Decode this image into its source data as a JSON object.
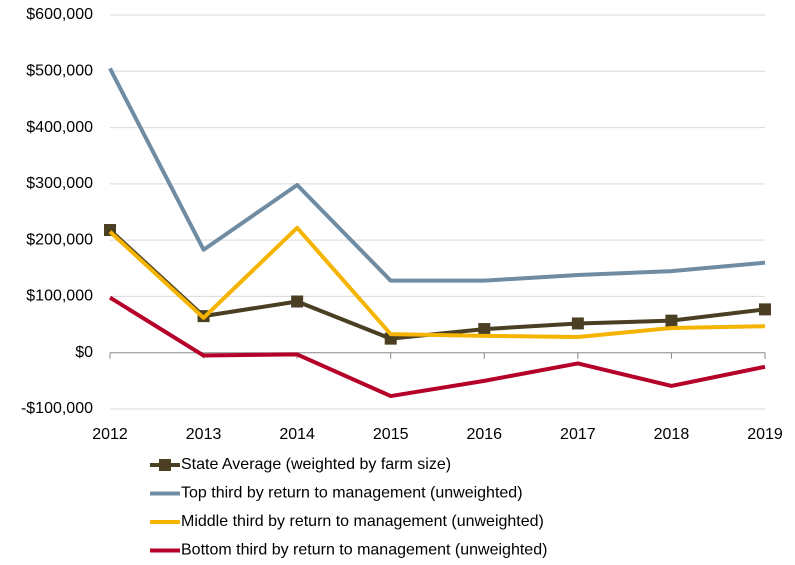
{
  "chart_data": {
    "type": "line",
    "x": [
      2012,
      2013,
      2014,
      2015,
      2016,
      2017,
      2018,
      2019
    ],
    "xlim": [
      2012,
      2019
    ],
    "xticks": [
      2012,
      2013,
      2014,
      2015,
      2016,
      2017,
      2018,
      2019
    ],
    "ylim": [
      -100000,
      600000
    ],
    "yticks": [
      {
        "value": -100000,
        "label": "-$100,000"
      },
      {
        "value": 0,
        "label": "$0"
      },
      {
        "value": 100000,
        "label": "$100,000"
      },
      {
        "value": 200000,
        "label": "$200,000"
      },
      {
        "value": 300000,
        "label": "$300,000"
      },
      {
        "value": 400000,
        "label": "$400,000"
      },
      {
        "value": 500000,
        "label": "$500,000"
      },
      {
        "value": 600000,
        "label": "$600,000"
      }
    ],
    "grid": true,
    "legend": "bottom",
    "series": [
      {
        "name": "State Average (weighted by farm size)",
        "color": "#4a3f22",
        "marker": "square",
        "values": [
          218000,
          65000,
          91000,
          25000,
          42000,
          52000,
          57000,
          77000
        ]
      },
      {
        "name": "Top third by return to management (unweighted)",
        "color": "#6f8ca3",
        "values": [
          505000,
          183000,
          298000,
          128000,
          128000,
          138000,
          145000,
          160000
        ]
      },
      {
        "name": "Middle third by return to management (unweighted)",
        "color": "#f4b400",
        "values": [
          215000,
          62000,
          222000,
          33000,
          30000,
          28000,
          44000,
          47000
        ]
      },
      {
        "name": "Bottom third by return to management (unweighted)",
        "color": "#b5002a",
        "values": [
          98000,
          -5000,
          -3000,
          -77000,
          -50000,
          -19000,
          -59000,
          -25000
        ]
      }
    ]
  }
}
